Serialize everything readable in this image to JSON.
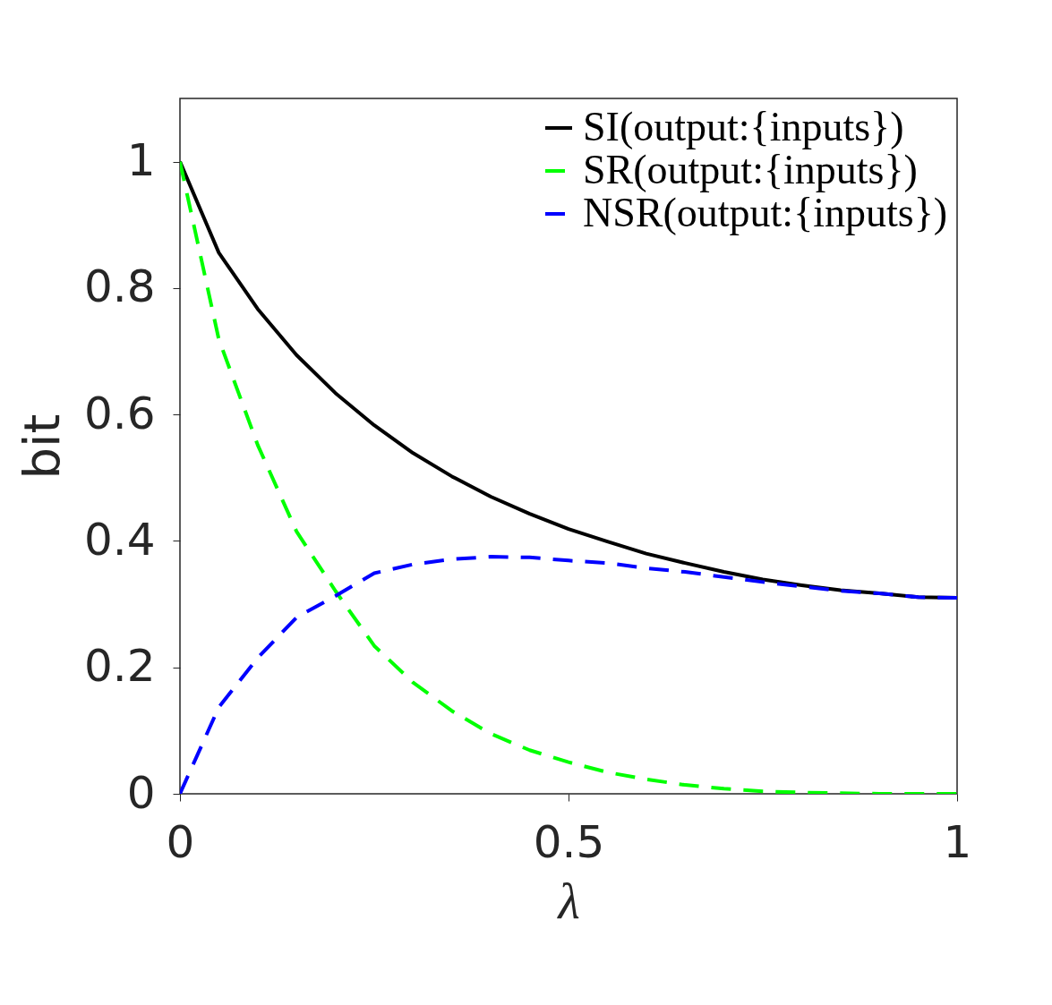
{
  "chart_data": {
    "type": "line",
    "xlabel": "λ",
    "ylabel": "bit",
    "x": [
      0,
      0.05,
      0.1,
      0.15,
      0.2,
      0.25,
      0.3,
      0.35,
      0.4,
      0.45,
      0.5,
      0.55,
      0.6,
      0.65,
      0.7,
      0.75,
      0.8,
      0.85,
      0.9,
      0.95,
      1
    ],
    "series": [
      {
        "name": "SI(output:{inputs})",
        "color": "#000000",
        "line_style": "solid",
        "values": [
          1.0,
          0.856,
          0.767,
          0.694,
          0.634,
          0.583,
          0.539,
          0.502,
          0.47,
          0.443,
          0.419,
          0.399,
          0.38,
          0.365,
          0.351,
          0.339,
          0.33,
          0.322,
          0.317,
          0.311,
          0.31
        ]
      },
      {
        "name": "SR(output:{inputs})",
        "color": "#00ff00",
        "line_style": "dashed",
        "values": [
          1.0,
          0.719,
          0.552,
          0.415,
          0.321,
          0.234,
          0.176,
          0.131,
          0.095,
          0.069,
          0.05,
          0.034,
          0.023,
          0.014,
          0.008,
          0.004,
          0.002,
          0.001,
          0,
          0,
          0
        ]
      },
      {
        "name": "NSR(output:{inputs})",
        "color": "#0000ff",
        "line_style": "dashed",
        "values": [
          0,
          0.137,
          0.215,
          0.279,
          0.313,
          0.349,
          0.363,
          0.371,
          0.375,
          0.374,
          0.369,
          0.365,
          0.357,
          0.351,
          0.343,
          0.335,
          0.328,
          0.321,
          0.317,
          0.311,
          0.31
        ]
      }
    ],
    "xlim": [
      0,
      1
    ],
    "xticks": [
      0,
      0.5,
      1
    ],
    "ylim": [
      0,
      1.1
    ],
    "yticks": [
      0,
      0.2,
      0.4,
      0.6,
      0.8,
      1
    ],
    "grid": false,
    "legend": "top right"
  }
}
